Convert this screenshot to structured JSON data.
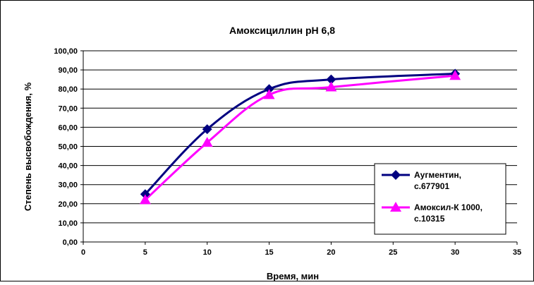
{
  "chart_data": {
    "type": "line",
    "title": "Амоксициллин рН 6,8",
    "xlabel": "Время, мин",
    "ylabel": "Степень высвобождения, %",
    "xlim": [
      0,
      35
    ],
    "ylim": [
      0,
      100
    ],
    "x_ticks": [
      "0",
      "5",
      "10",
      "15",
      "20",
      "25",
      "30",
      "35"
    ],
    "y_ticks": [
      "0,00",
      "10,00",
      "20,00",
      "30,00",
      "40,00",
      "50,00",
      "60,00",
      "70,00",
      "80,00",
      "90,00",
      "100,00"
    ],
    "grid": "horizontal",
    "legend_position": "bottom-right",
    "series": [
      {
        "name": "Аугментин, с.677901",
        "legend_lines": [
          "Аугментин,",
          "с.677901"
        ],
        "color": "#000080",
        "marker": "diamond",
        "x": [
          5,
          10,
          15,
          20,
          30
        ],
        "y": [
          25,
          59,
          80,
          85,
          88
        ]
      },
      {
        "name": "Амоксил-К 1000, с.10315",
        "legend_lines": [
          "Амоксил-К 1000,",
          "с.10315"
        ],
        "color": "#ff00ff",
        "marker": "triangle",
        "x": [
          5,
          10,
          15,
          20,
          30
        ],
        "y": [
          22,
          52,
          77,
          81,
          87
        ]
      }
    ]
  }
}
